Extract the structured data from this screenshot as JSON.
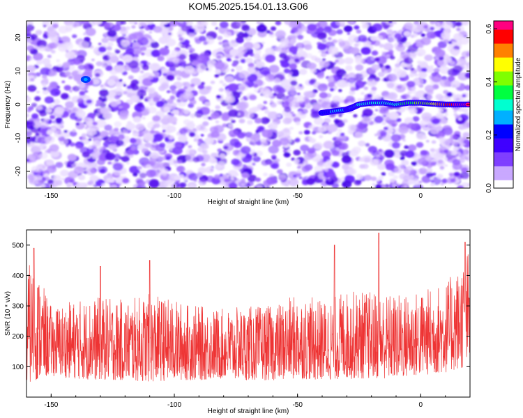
{
  "title": "KOM5.2025.154.01.13.G06",
  "chart_data": [
    {
      "type": "heatmap",
      "xlabel": "Height of straight line (km)",
      "ylabel": "Frequency (Hz)",
      "xlim": [
        -160,
        20
      ],
      "ylim": [
        -25,
        25
      ],
      "xticks": [
        -150,
        -100,
        -50,
        0
      ],
      "yticks": [
        -20,
        -10,
        0,
        10,
        20
      ],
      "colorbar": {
        "label": "Normalized spectral amplitude",
        "range": [
          0.0,
          0.63
        ],
        "ticks": [
          0.0,
          0.2,
          0.4,
          0.6
        ],
        "colors": [
          "#ffffff",
          "#c9a8ff",
          "#7f3fff",
          "#3f00ff",
          "#0000ff",
          "#00b0ff",
          "#00ffd0",
          "#00ff40",
          "#80ff00",
          "#ffff00",
          "#ff8000",
          "#ff0000",
          "#ff0080"
        ]
      },
      "ridge": {
        "points": [
          [
            -40,
            -2.5
          ],
          [
            -35,
            -2.0
          ],
          [
            -30,
            -1.5
          ],
          [
            -28,
            -1.0
          ],
          [
            -25,
            0.0
          ],
          [
            -20,
            0.5
          ],
          [
            -15,
            0.5
          ],
          [
            -10,
            0.0
          ],
          [
            -5,
            0.5
          ],
          [
            0,
            0.5
          ],
          [
            5,
            0.2
          ],
          [
            10,
            0.0
          ],
          [
            15,
            0.0
          ],
          [
            20,
            0.0
          ]
        ],
        "amplitudes": [
          0.22,
          0.24,
          0.26,
          0.27,
          0.3,
          0.3,
          0.32,
          0.33,
          0.36,
          0.42,
          0.45,
          0.55,
          0.62,
          0.63
        ]
      }
    },
    {
      "type": "line",
      "xlabel": "Height of straight line (km)",
      "ylabel": "SNR (10 * v/v)",
      "xlim": [
        -160,
        20
      ],
      "ylim": [
        0,
        550
      ],
      "xticks": [
        -150,
        -100,
        -50,
        0
      ],
      "yticks": [
        100,
        200,
        300,
        400,
        500
      ],
      "series": [
        {
          "color": "#ee3333",
          "envelope": {
            "x": [
              -160,
              -155,
              -150,
              -140,
              -130,
              -120,
              -110,
              -100,
              -90,
              -80,
              -70,
              -60,
              -50,
              -40,
              -30,
              -20,
              -10,
              0,
              10,
              15,
              20
            ],
            "low": [
              40,
              60,
              70,
              60,
              55,
              55,
              50,
              55,
              55,
              60,
              55,
              55,
              60,
              55,
              60,
              60,
              60,
              70,
              80,
              90,
              100
            ],
            "high": [
              450,
              400,
              300,
              320,
              330,
              320,
              340,
              320,
              300,
              290,
              300,
              300,
              340,
              320,
              350,
              350,
              340,
              350,
              380,
              420,
              500
            ],
            "spikes": [
              [
                -157,
                490
              ],
              [
                -130,
                430
              ],
              [
                -110,
                450
              ],
              [
                -17,
                540
              ],
              [
                -35,
                500
              ],
              [
                18,
                510
              ]
            ]
          }
        }
      ]
    }
  ]
}
